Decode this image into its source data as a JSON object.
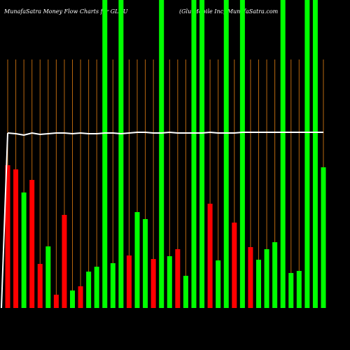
{
  "chart_data": {
    "type": "bar",
    "title": "MunafaSatra  Money Flow  Charts for GLUU",
    "subtitle": "(Glu Mobile  Inc) MunafaSatra.com",
    "ylim": [
      0,
      440
    ],
    "values": [
      204,
      198,
      165,
      183,
      63,
      88,
      19,
      133,
      25,
      31,
      52,
      59,
      440,
      64,
      440,
      75,
      137,
      127,
      70,
      440,
      74,
      84,
      46,
      440,
      440,
      149,
      68,
      440,
      122,
      440,
      87,
      69,
      84,
      94,
      440,
      50,
      53,
      440,
      440,
      201
    ],
    "colors": [
      "#ff0000",
      "#ff0000",
      "#00ff00",
      "#ff0000",
      "#ff0000",
      "#00ff00",
      "#ff0000",
      "#ff0000",
      "#00ff00",
      "#ff0000",
      "#00ff00",
      "#00ff00",
      "#00ff00",
      "#00ff00",
      "#00ff00",
      "#ff0000",
      "#00ff00",
      "#00ff00",
      "#ff0000",
      "#00ff00",
      "#00ff00",
      "#ff0000",
      "#00ff00",
      "#00ff00",
      "#00ff00",
      "#ff0000",
      "#00ff00",
      "#00ff00",
      "#ff0000",
      "#00ff00",
      "#ff0000",
      "#00ff00",
      "#00ff00",
      "#00ff00",
      "#00ff00",
      "#00ff00",
      "#00ff00",
      "#00ff00",
      "#00ff00",
      "#00ff00"
    ],
    "line": {
      "color": "#ffffff",
      "values": [
        250,
        249,
        247,
        250,
        248,
        249,
        250,
        250,
        249,
        250,
        249,
        249,
        250,
        250,
        249,
        250,
        251,
        251,
        250,
        250,
        251,
        250,
        250,
        250,
        250,
        251,
        250,
        250,
        250,
        251,
        251,
        251,
        251,
        251,
        251,
        251,
        251,
        251,
        251,
        251
      ]
    },
    "gridline_color": "#b8670f"
  }
}
